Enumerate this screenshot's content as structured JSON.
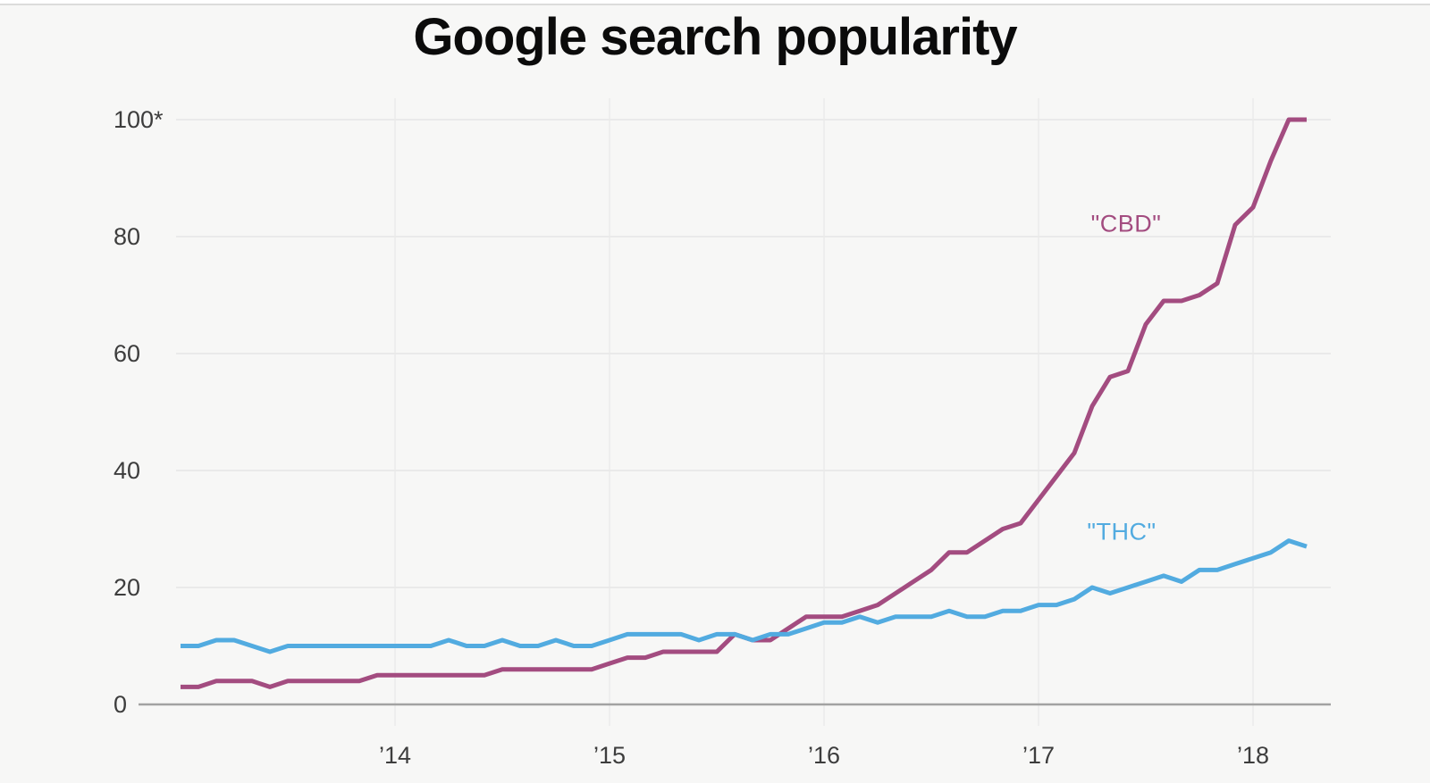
{
  "chart": {
    "title": "Google search popularity",
    "y_axis": {
      "tick_labels": [
        "100*",
        "80",
        "60",
        "40",
        "20",
        "0"
      ],
      "tick_values": [
        100,
        80,
        60,
        40,
        20,
        0
      ]
    },
    "x_axis": {
      "tick_labels": [
        "’14",
        "’15",
        "’16",
        "’17",
        "’18"
      ]
    },
    "series_labels": {
      "cbd": "\"CBD\"",
      "thc": "\"THC\""
    },
    "colors": {
      "cbd": "#a34c80",
      "thc": "#52abe0",
      "background": "#f7f7f6",
      "grid_horizontal": "#e6e6e5",
      "grid_vertical": "#e9e9e8",
      "axis": "#a2a2a2",
      "title_text": "#0b0b0b",
      "tick_text": "#3d3d3d"
    }
  },
  "chart_data": {
    "type": "line",
    "title": "Google search popularity",
    "xlabel": "",
    "ylabel": "",
    "ylim": [
      0,
      100
    ],
    "grid": true,
    "legend_position": "inline-labels-near-lines",
    "y_ticks": [
      0,
      20,
      40,
      60,
      80,
      100
    ],
    "y_top_tick_label": "100*",
    "x_tick_labels": [
      "’14",
      "’15",
      "’16",
      "’17",
      "’18"
    ],
    "x": [
      "2013-01",
      "2013-02",
      "2013-03",
      "2013-04",
      "2013-05",
      "2013-06",
      "2013-07",
      "2013-08",
      "2013-09",
      "2013-10",
      "2013-11",
      "2013-12",
      "2014-01",
      "2014-02",
      "2014-03",
      "2014-04",
      "2014-05",
      "2014-06",
      "2014-07",
      "2014-08",
      "2014-09",
      "2014-10",
      "2014-11",
      "2014-12",
      "2015-01",
      "2015-02",
      "2015-03",
      "2015-04",
      "2015-05",
      "2015-06",
      "2015-07",
      "2015-08",
      "2015-09",
      "2015-10",
      "2015-11",
      "2015-12",
      "2016-01",
      "2016-02",
      "2016-03",
      "2016-04",
      "2016-05",
      "2016-06",
      "2016-07",
      "2016-08",
      "2016-09",
      "2016-10",
      "2016-11",
      "2016-12",
      "2017-01",
      "2017-02",
      "2017-03",
      "2017-04",
      "2017-05",
      "2017-06",
      "2017-07",
      "2017-08",
      "2017-09",
      "2017-10",
      "2017-11",
      "2017-12",
      "2018-01",
      "2018-02",
      "2018-03",
      "2018-04"
    ],
    "series": [
      {
        "name": "\"CBD\"",
        "color": "#a34c80",
        "values": [
          3,
          3,
          4,
          4,
          4,
          3,
          4,
          4,
          4,
          4,
          4,
          5,
          5,
          5,
          5,
          5,
          5,
          5,
          6,
          6,
          6,
          6,
          6,
          6,
          7,
          8,
          8,
          9,
          9,
          9,
          9,
          12,
          11,
          11,
          13,
          15,
          15,
          15,
          16,
          17,
          19,
          21,
          23,
          26,
          26,
          28,
          30,
          31,
          35,
          39,
          43,
          51,
          56,
          57,
          65,
          69,
          69,
          70,
          72,
          82,
          85,
          93,
          100,
          100
        ]
      },
      {
        "name": "\"THC\"",
        "color": "#52abe0",
        "values": [
          10,
          10,
          11,
          11,
          10,
          9,
          10,
          10,
          10,
          10,
          10,
          10,
          10,
          10,
          10,
          11,
          10,
          10,
          11,
          10,
          10,
          11,
          10,
          10,
          11,
          12,
          12,
          12,
          12,
          11,
          12,
          12,
          11,
          12,
          12,
          13,
          14,
          14,
          15,
          14,
          15,
          15,
          15,
          16,
          15,
          15,
          16,
          16,
          17,
          17,
          18,
          20,
          19,
          20,
          21,
          22,
          21,
          23,
          23,
          24,
          25,
          26,
          28,
          27
        ]
      }
    ]
  }
}
